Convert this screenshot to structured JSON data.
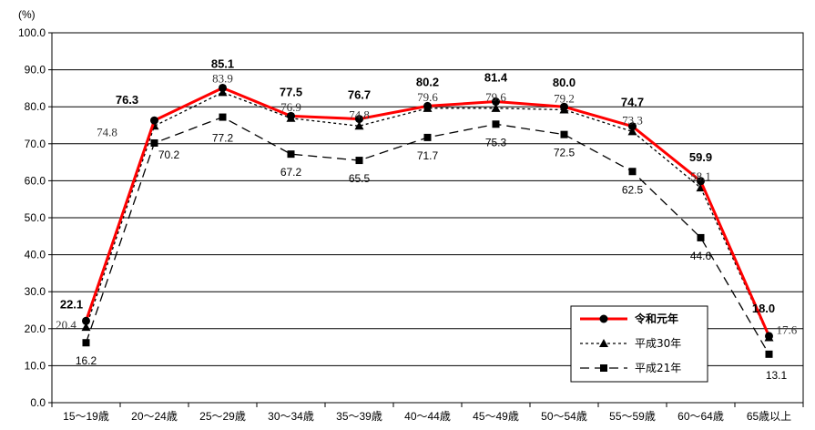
{
  "chart_data": {
    "type": "line",
    "title": "",
    "ylabel": "(%)",
    "xlabel": "",
    "ylim": [
      0,
      100
    ],
    "yticks": [
      "0.0",
      "10.0",
      "20.0",
      "30.0",
      "40.0",
      "50.0",
      "60.0",
      "70.0",
      "80.0",
      "90.0",
      "100.0"
    ],
    "categories": [
      "15～19歳",
      "20～24歳",
      "25～29歳",
      "30～34歳",
      "35～39歳",
      "40～44歳",
      "45～49歳",
      "50～54歳",
      "55～59歳",
      "60～64歳",
      "65歳以上"
    ],
    "legend_position": "bottom-right",
    "series": [
      {
        "name": "令和元年",
        "color": "#ff0000",
        "marker": "circle",
        "style": "solid",
        "values": [
          22.1,
          76.3,
          85.1,
          77.5,
          76.7,
          80.2,
          81.4,
          80.0,
          74.7,
          59.9,
          18.0
        ],
        "labels": [
          "22.1",
          "76.3",
          "85.1",
          "77.5",
          "76.7",
          "80.2",
          "81.4",
          "80.0",
          "74.7",
          "59.9",
          "18.0"
        ]
      },
      {
        "name": "平成30年",
        "color": "#000000",
        "marker": "triangle",
        "style": "dotted",
        "values": [
          20.4,
          74.8,
          83.9,
          76.9,
          74.8,
          79.6,
          79.6,
          79.2,
          73.3,
          58.1,
          17.6
        ],
        "labels": [
          "20.4",
          "74.8",
          "83.9",
          "76.9",
          "74.8",
          "79.6",
          "79.6",
          "79.2",
          "73.3",
          "58.1",
          "17.6"
        ]
      },
      {
        "name": "平成21年",
        "color": "#000000",
        "marker": "square",
        "style": "dashed",
        "values": [
          16.2,
          70.2,
          77.2,
          67.2,
          65.5,
          71.7,
          75.3,
          72.5,
          62.5,
          44.6,
          13.1
        ],
        "labels": [
          "16.2",
          "70.2",
          "77.2",
          "67.2",
          "65.5",
          "71.7",
          "75.3",
          "72.5",
          "62.5",
          "44.6",
          "13.1"
        ]
      }
    ]
  }
}
